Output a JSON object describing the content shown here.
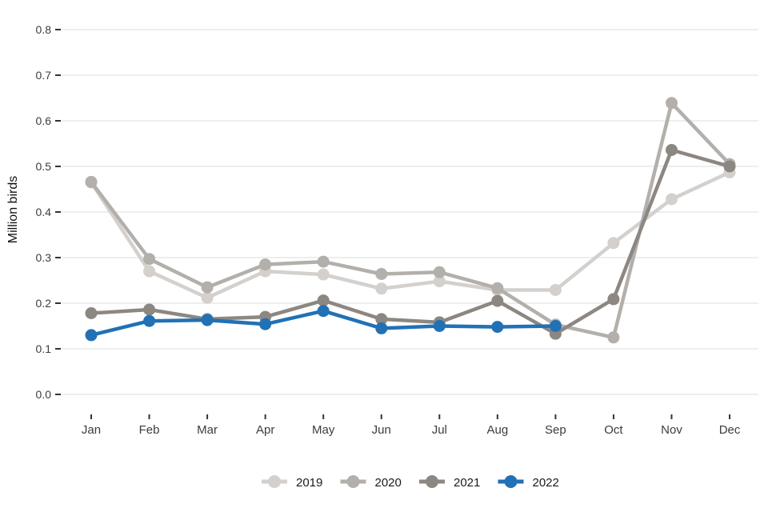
{
  "chart_data": {
    "type": "line",
    "title": "",
    "xlabel": "",
    "ylabel": "Million birds",
    "categories": [
      "Jan",
      "Feb",
      "Mar",
      "Apr",
      "May",
      "Jun",
      "Jul",
      "Aug",
      "Sep",
      "Oct",
      "Nov",
      "Dec"
    ],
    "ylim": [
      0.0,
      0.8
    ],
    "yticks": [
      0.0,
      0.1,
      0.2,
      0.3,
      0.4,
      0.5,
      0.6,
      0.7,
      0.8
    ],
    "ytick_labels": [
      "0.0",
      "0.1",
      "0.2",
      "0.3",
      "0.4",
      "0.5",
      "0.6",
      "0.7",
      "0.8"
    ],
    "grid": "horizontal",
    "grid_color": "#e8e8e8",
    "tick_color": "#333333",
    "legend_position": "bottom-center",
    "series": [
      {
        "name": "2019",
        "color": "#d3d0cd",
        "values": [
          0.465,
          0.27,
          0.212,
          0.27,
          0.263,
          0.232,
          0.248,
          0.229,
          0.229,
          0.332,
          0.428,
          0.487
        ]
      },
      {
        "name": "2020",
        "color": "#b3afab",
        "values": [
          0.466,
          0.297,
          0.235,
          0.285,
          0.291,
          0.264,
          0.268,
          0.233,
          0.153,
          0.125,
          0.639,
          0.505
        ]
      },
      {
        "name": "2021",
        "color": "#8c8781",
        "values": [
          0.178,
          0.186,
          0.165,
          0.17,
          0.206,
          0.165,
          0.158,
          0.205,
          0.133,
          0.209,
          0.536,
          0.5
        ]
      },
      {
        "name": "2022",
        "color": "#2171b5",
        "values": [
          0.13,
          0.161,
          0.163,
          0.154,
          0.183,
          0.145,
          0.15,
          0.148,
          0.15,
          null,
          null,
          null
        ]
      }
    ]
  }
}
